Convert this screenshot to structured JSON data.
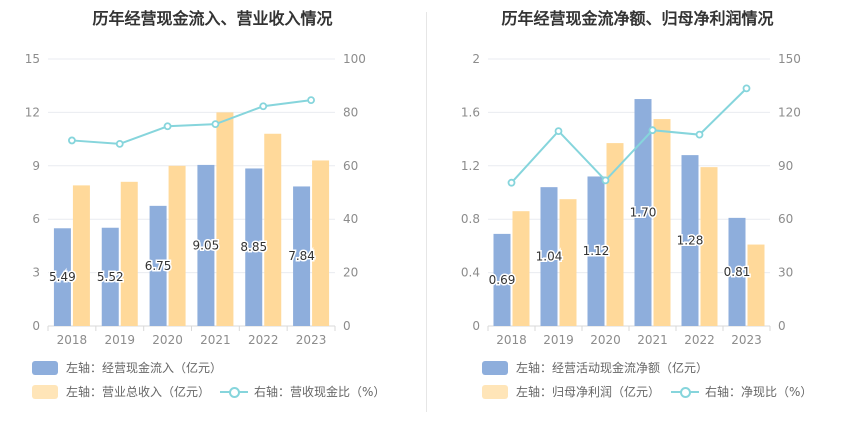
{
  "colors": {
    "bar1": "#8eaedc",
    "bar2": "#ffd99a",
    "line": "#86d5dc",
    "grid": "#e9ebf0",
    "axis": "#d9d9d9"
  },
  "chart_data": [
    {
      "type": "bar",
      "title": "历年经营现金流入、营业收入情况",
      "categories": [
        "2018",
        "2019",
        "2020",
        "2021",
        "2022",
        "2023"
      ],
      "yleft": {
        "ticks": [
          "0",
          "3",
          "6",
          "9",
          "12",
          "15"
        ],
        "lim": [
          0,
          15
        ]
      },
      "yright": {
        "ticks": [
          "0",
          "20",
          "40",
          "60",
          "80",
          "100"
        ],
        "lim": [
          0,
          100
        ]
      },
      "series": [
        {
          "name": "左轴：经营现金流入（亿元）",
          "kind": "bar",
          "axis": "left",
          "values": [
            5.49,
            5.52,
            6.75,
            9.05,
            8.85,
            7.84
          ],
          "labels": [
            "5.49",
            "5.52",
            "6.75",
            "9.05",
            "8.85",
            "7.84"
          ]
        },
        {
          "name": "左轴：营业总收入（亿元）",
          "kind": "bar",
          "axis": "left",
          "values": [
            7.9,
            8.1,
            9.0,
            12.0,
            10.8,
            9.3
          ]
        },
        {
          "name": "右轴：营收现金比（%）",
          "kind": "line",
          "axis": "right",
          "values": [
            69.5,
            68.2,
            74.8,
            75.6,
            82.3,
            84.6
          ]
        }
      ]
    },
    {
      "type": "bar",
      "title": "历年经营现金流净额、归母净利润情况",
      "categories": [
        "2018",
        "2019",
        "2020",
        "2021",
        "2022",
        "2023"
      ],
      "yleft": {
        "ticks": [
          "0",
          "0.4",
          "0.8",
          "1.2",
          "1.6",
          "2"
        ],
        "lim": [
          0,
          2
        ]
      },
      "yright": {
        "ticks": [
          "0",
          "30",
          "60",
          "90",
          "120",
          "150"
        ],
        "lim": [
          0,
          150
        ]
      },
      "series": [
        {
          "name": "左轴：经营活动现金流净额（亿元）",
          "kind": "bar",
          "axis": "left",
          "values": [
            0.69,
            1.04,
            1.12,
            1.7,
            1.28,
            0.81
          ],
          "labels": [
            "0.69",
            "1.04",
            "1.12",
            "1.70",
            "1.28",
            "0.81"
          ]
        },
        {
          "name": "左轴：归母净利润（亿元）",
          "kind": "bar",
          "axis": "left",
          "values": [
            0.86,
            0.95,
            1.37,
            1.55,
            1.19,
            0.61
          ]
        },
        {
          "name": "右轴：净现比（%）",
          "kind": "line",
          "axis": "right",
          "values": [
            80.5,
            109.5,
            81.8,
            110.0,
            107.5,
            133.5
          ]
        }
      ]
    }
  ]
}
